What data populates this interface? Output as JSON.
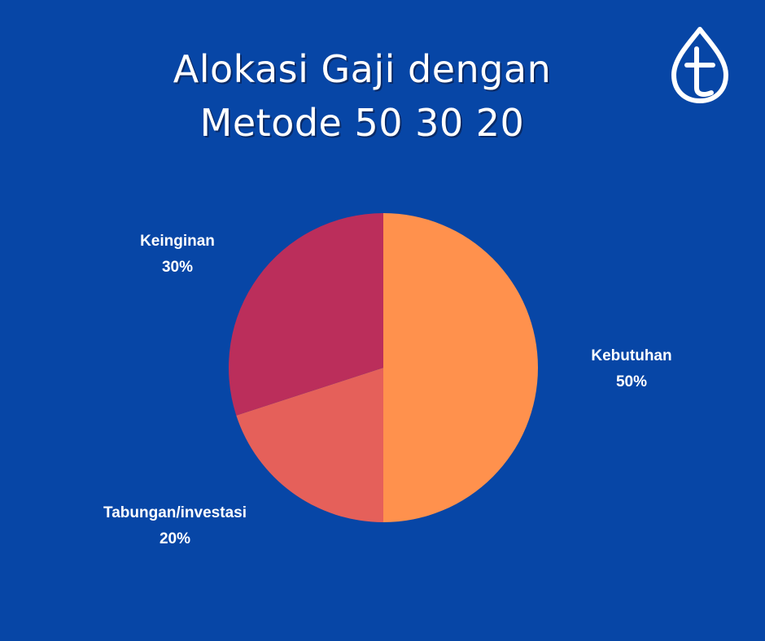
{
  "title": {
    "line1": "Alokasi Gaji dengan",
    "line2": "Metode 50 30 20"
  },
  "logo": {
    "icon": "leaf-t-logo-icon",
    "color": "#ffffff"
  },
  "background_color": "#0746a6",
  "chart_data": {
    "type": "pie",
    "title": "Alokasi Gaji dengan Metode 50 30 20",
    "start_angle_deg": 0,
    "direction": "clockwise",
    "slices": [
      {
        "label": "Kebutuhan",
        "value": 50,
        "value_label": "50%",
        "color": "#ff914d"
      },
      {
        "label": "Tabungan/investasi",
        "value": 20,
        "value_label": "20%",
        "color": "#e5605a"
      },
      {
        "label": "Keinginan",
        "value": 30,
        "value_label": "30%",
        "color": "#bb2e5b"
      }
    ]
  }
}
